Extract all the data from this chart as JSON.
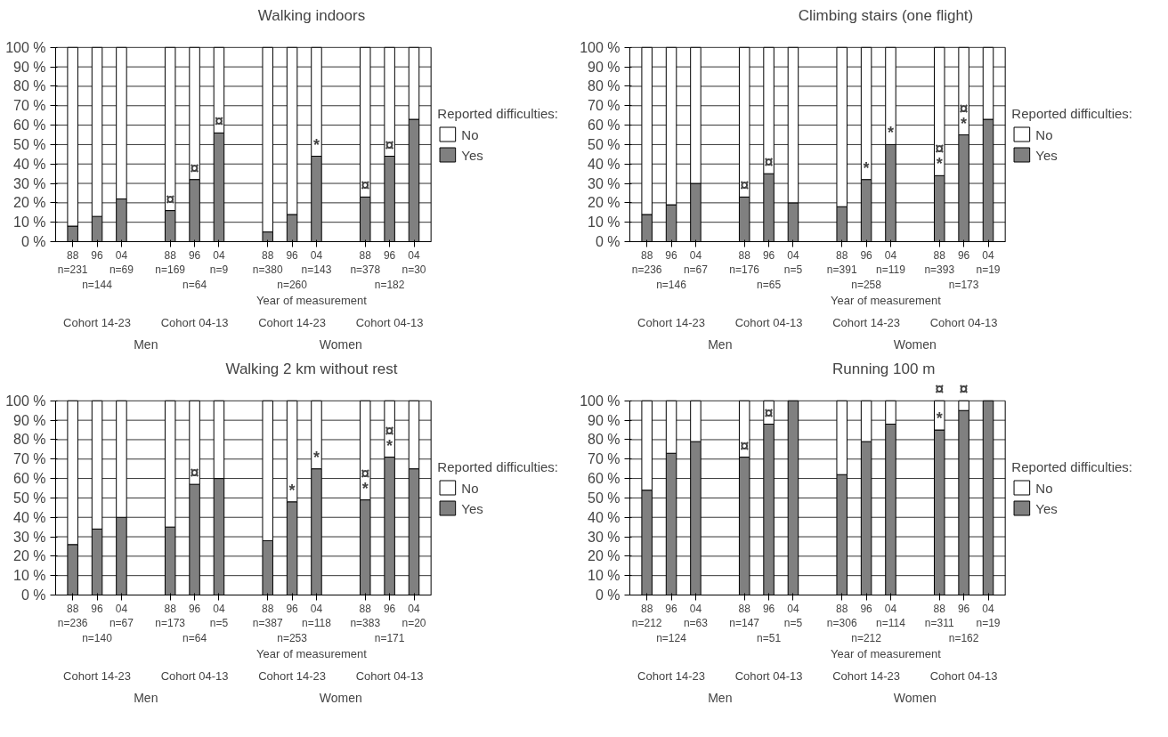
{
  "chart_data": [
    {
      "type": "bar",
      "stacked": true,
      "title": "Walking indoors",
      "xlabel": "Year of measurement",
      "legend_title": "Reported difficulties:",
      "legend": "right",
      "grid": "y",
      "categories": [
        "88\nn=231",
        "96\n\nn=144",
        "04\nn=69",
        "88\nn=169",
        "96\n\nn=64",
        "04\nn=9",
        "88\nn=380",
        "96\n\nn=260",
        "04\nn=143",
        "88\nn=378",
        "96\n\nn=182",
        "04\nn=30"
      ],
      "series": [
        {
          "name": "Yes",
          "color": "#808080",
          "values": [
            8,
            13,
            22,
            16,
            32,
            56,
            5,
            14,
            44,
            23,
            44,
            63
          ]
        },
        {
          "name": "No",
          "color": "#ffffff",
          "values": [
            92,
            87,
            78,
            84,
            68,
            44,
            95,
            86,
            56,
            77,
            56,
            37
          ]
        }
      ],
      "ylim": [
        0,
        100
      ],
      "yticks": [
        {
          "value": 0,
          "label": "0 %"
        },
        {
          "value": 10,
          "label": "10 %"
        },
        {
          "value": 20,
          "label": "20 %"
        },
        {
          "value": 30,
          "label": "30 %"
        },
        {
          "value": 40,
          "label": "40 %"
        },
        {
          "value": 50,
          "label": "50 %"
        },
        {
          "value": 60,
          "label": "60 %"
        },
        {
          "value": 70,
          "label": "70 %"
        },
        {
          "value": 80,
          "label": "80 %"
        },
        {
          "value": 90,
          "label": "90 %"
        },
        {
          "value": 100,
          "label": "100 %"
        }
      ],
      "annotations": [
        "Cohort 14-23",
        "Cohort 04-13",
        "Cohort 14-23",
        "Cohort 04-13",
        "Men",
        "Women",
        {
          "text": "¤",
          "x": "88\nn=169",
          "y": 16
        },
        {
          "text": "¤",
          "x": "96\n\nn=64",
          "y": 32
        },
        {
          "text": "¤",
          "x": "04\nn=9",
          "y": 56
        },
        {
          "text": "*",
          "x": "04\nn=143",
          "y": 44
        },
        {
          "text": "¤",
          "x": "88\nn=378",
          "y": 23
        },
        {
          "text": "¤",
          "x": "96\n\nn=182",
          "y": 44
        }
      ]
    },
    {
      "type": "bar",
      "stacked": true,
      "title": "Climbing stairs (one flight)",
      "xlabel": "Year of measurement",
      "legend_title": "Reported difficulties:",
      "legend": "right",
      "grid": "y",
      "categories": [
        "88\nn=236",
        "96\n\nn=146",
        "04\nn=67",
        "88\nn=176",
        "96\n\nn=65",
        "04\nn=5",
        "88\nn=391",
        "96\n\nn=258",
        "04\nn=119",
        "88\nn=393",
        "96\n\nn=173",
        "04\nn=19"
      ],
      "series": [
        {
          "name": "Yes",
          "color": "#808080",
          "values": [
            14,
            19,
            30,
            23,
            35,
            20,
            18,
            32,
            50,
            34,
            55,
            63
          ]
        },
        {
          "name": "No",
          "color": "#ffffff",
          "values": [
            86,
            81,
            70,
            77,
            65,
            80,
            82,
            68,
            50,
            66,
            45,
            37
          ]
        }
      ],
      "ylim": [
        0,
        100
      ],
      "yticks": [
        {
          "value": 0,
          "label": "0 %"
        },
        {
          "value": 10,
          "label": "10 %"
        },
        {
          "value": 20,
          "label": "20 %"
        },
        {
          "value": 30,
          "label": "30 %"
        },
        {
          "value": 40,
          "label": "40 %"
        },
        {
          "value": 50,
          "label": "50 %"
        },
        {
          "value": 60,
          "label": "60 %"
        },
        {
          "value": 70,
          "label": "70 %"
        },
        {
          "value": 80,
          "label": "80 %"
        },
        {
          "value": 90,
          "label": "90 %"
        },
        {
          "value": 100,
          "label": "100 %"
        }
      ],
      "annotations": [
        "Cohort 14-23",
        "Cohort 04-13",
        "Cohort 14-23",
        "Cohort 04-13",
        "Men",
        "Women",
        {
          "text": "¤",
          "x": "88\nn=176",
          "y": 23
        },
        {
          "text": "¤",
          "x": "96\n\nn=65",
          "y": 35
        },
        {
          "text": "*",
          "x": "96\n\nn=258",
          "y": 32
        },
        {
          "text": "*",
          "x": "04\nn=119",
          "y": 50
        },
        {
          "text": "*",
          "x": "88\nn=393",
          "y": 34
        },
        {
          "text": "¤",
          "x": "88\nn=393",
          "y": 34
        },
        {
          "text": "*",
          "x": "96\n\nn=173",
          "y": 55
        },
        {
          "text": "¤",
          "x": "96\n\nn=173",
          "y": 55
        }
      ]
    },
    {
      "type": "bar",
      "stacked": true,
      "title": "Walking 2 km without rest",
      "xlabel": "Year of measurement",
      "legend_title": "Reported difficulties:",
      "legend": "right",
      "grid": "y",
      "categories": [
        "88\nn=236",
        "96\n\nn=140",
        "04\nn=67",
        "88\nn=173",
        "96\n\nn=64",
        "04\nn=5",
        "88\nn=387",
        "96\n\nn=253",
        "04\nn=118",
        "88\nn=383",
        "96\n\nn=171",
        "04\nn=20"
      ],
      "series": [
        {
          "name": "Yes",
          "color": "#808080",
          "values": [
            26,
            34,
            40,
            35,
            57,
            60,
            28,
            48,
            65,
            49,
            71,
            65
          ]
        },
        {
          "name": "No",
          "color": "#ffffff",
          "values": [
            74,
            66,
            60,
            65,
            43,
            40,
            72,
            52,
            35,
            51,
            29,
            35
          ]
        }
      ],
      "ylim": [
        0,
        100
      ],
      "yticks": [
        {
          "value": 0,
          "label": "0 %"
        },
        {
          "value": 10,
          "label": "10 %"
        },
        {
          "value": 20,
          "label": "20 %"
        },
        {
          "value": 30,
          "label": "30 %"
        },
        {
          "value": 40,
          "label": "40 %"
        },
        {
          "value": 50,
          "label": "50 %"
        },
        {
          "value": 60,
          "label": "60 %"
        },
        {
          "value": 70,
          "label": "70 %"
        },
        {
          "value": 80,
          "label": "80 %"
        },
        {
          "value": 90,
          "label": "90 %"
        },
        {
          "value": 100,
          "label": "100 %"
        }
      ],
      "annotations": [
        "Cohort 14-23",
        "Cohort 04-13",
        "Cohort 14-23",
        "Cohort 04-13",
        "Men",
        "Women",
        {
          "text": "¤",
          "x": "96\n\nn=64",
          "y": 57
        },
        {
          "text": "*",
          "x": "96\n\nn=253",
          "y": 48
        },
        {
          "text": "*",
          "x": "04\nn=118",
          "y": 65
        },
        {
          "text": "*",
          "x": "88\nn=383",
          "y": 49
        },
        {
          "text": "¤",
          "x": "88\nn=383",
          "y": 49
        },
        {
          "text": "*",
          "x": "96\n\nn=171",
          "y": 71
        },
        {
          "text": "¤",
          "x": "96\n\nn=171",
          "y": 71
        }
      ]
    },
    {
      "type": "bar",
      "stacked": true,
      "title": "Running  100 m",
      "xlabel": "Year of measurement",
      "legend_title": "Reported difficulties:",
      "legend": "right",
      "grid": "y",
      "categories": [
        "88\nn=212",
        "96\n\nn=124",
        "04\nn=63",
        "88\nn=147",
        "96\n\nn=51",
        "04\nn=5",
        "88\nn=306",
        "96\n\nn=212",
        "04\nn=114",
        "88\nn=311",
        "96\n\nn=162",
        "04\nn=19"
      ],
      "series": [
        {
          "name": "Yes",
          "color": "#808080",
          "values": [
            54,
            73,
            79,
            71,
            88,
            100,
            62,
            79,
            88,
            85,
            95,
            100
          ]
        },
        {
          "name": "No",
          "color": "#ffffff",
          "values": [
            46,
            27,
            21,
            29,
            12,
            0,
            38,
            21,
            12,
            15,
            5,
            0
          ]
        }
      ],
      "ylim": [
        0,
        100
      ],
      "yticks": [
        {
          "value": 0,
          "label": "0 %"
        },
        {
          "value": 10,
          "label": "10 %"
        },
        {
          "value": 20,
          "label": "20 %"
        },
        {
          "value": 30,
          "label": "30 %"
        },
        {
          "value": 40,
          "label": "40 %"
        },
        {
          "value": 50,
          "label": "50 %"
        },
        {
          "value": 60,
          "label": "60 %"
        },
        {
          "value": 70,
          "label": "70 %"
        },
        {
          "value": 80,
          "label": "80 %"
        },
        {
          "value": 90,
          "label": "90 %"
        },
        {
          "value": 100,
          "label": "100 %"
        }
      ],
      "annotations": [
        "Cohort 14-23",
        "Cohort 04-13",
        "Cohort 14-23",
        "Cohort 04-13",
        "Men",
        "Women",
        {
          "text": "¤",
          "x": "88\nn=147",
          "y": 71
        },
        {
          "text": "¤",
          "x": "96\n\nn=51",
          "y": 88
        },
        {
          "text": "*",
          "x": "88\nn=311",
          "y": 85
        },
        {
          "text": "¤",
          "x": "88\nn=311",
          "y": 100
        },
        {
          "text": "¤",
          "x": "96\n\nn=162",
          "y": 100
        }
      ]
    }
  ]
}
